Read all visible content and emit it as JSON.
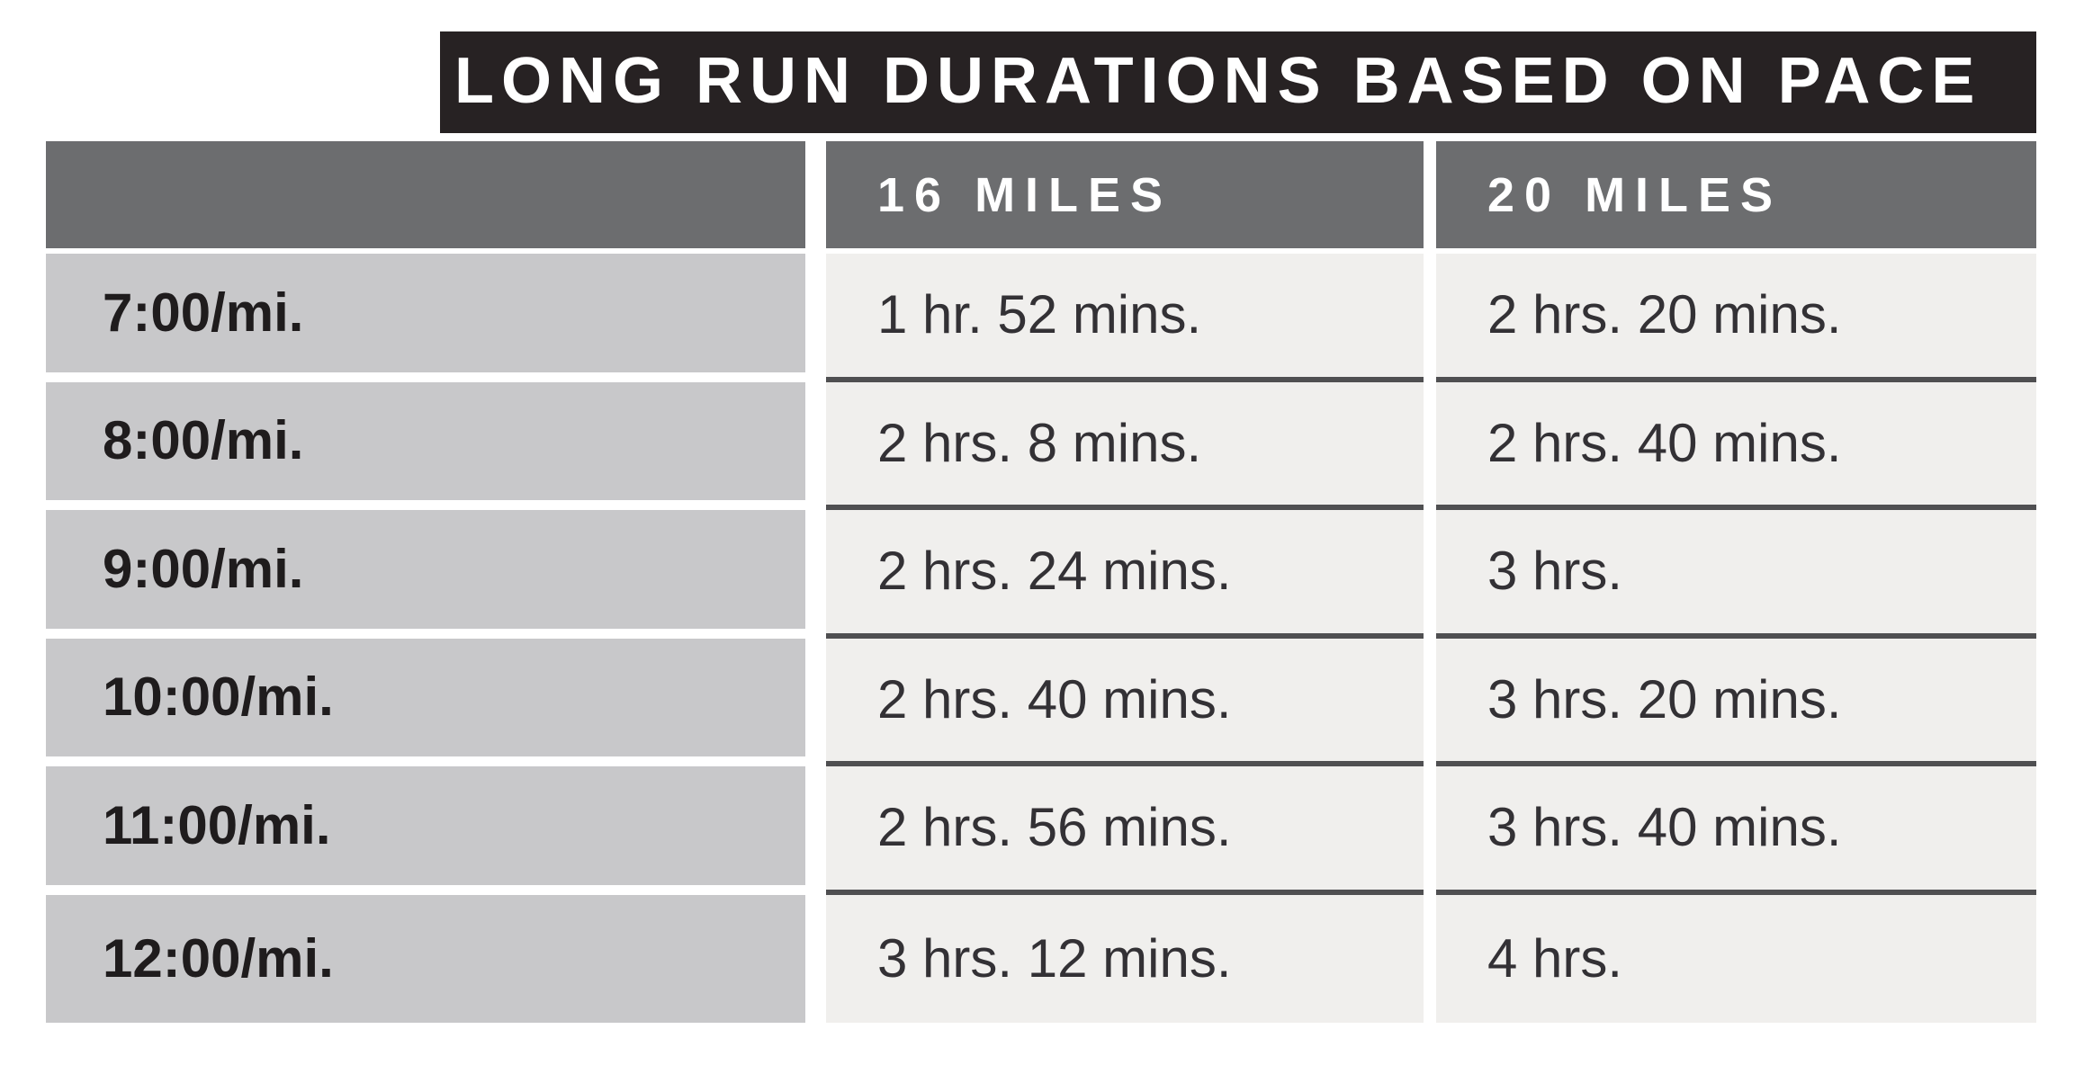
{
  "title": "LONG RUN DURATIONS BASED ON PACE",
  "table": {
    "columns": {
      "pace_header": "",
      "col16": "16 MILES",
      "col20": "20 MILES"
    },
    "rows": [
      {
        "pace": "7:00/mi.",
        "d16": "1 hr. 52 mins.",
        "d20": "2 hrs. 20 mins."
      },
      {
        "pace": "8:00/mi.",
        "d16": "2 hrs. 8 mins.",
        "d20": "2 hrs. 40 mins."
      },
      {
        "pace": "9:00/mi.",
        "d16": "2 hrs. 24 mins.",
        "d20": "3 hrs."
      },
      {
        "pace": "10:00/mi.",
        "d16": "2 hrs. 40 mins.",
        "d20": "3 hrs. 20 mins."
      },
      {
        "pace": "11:00/mi.",
        "d16": "2 hrs. 56 mins.",
        "d20": "3 hrs. 40 mins."
      },
      {
        "pace": "12:00/mi.",
        "d16": "3 hrs. 12 mins.",
        "d20": "4 hrs."
      }
    ]
  },
  "colors": {
    "title_bar_bg": "#272223",
    "title_text": "#ffffff",
    "header_bg": "#6c6d6f",
    "header_text": "#ffffff",
    "pace_cell_bg": "#c8c8ca",
    "duration_cell_bg": "#f0efed",
    "row_separator_dark": "#4f4f51",
    "row_separator_light": "#ffffff",
    "body_text": "#333135",
    "pace_text": "#1f1c1d",
    "page_bg": "#ffffff"
  }
}
